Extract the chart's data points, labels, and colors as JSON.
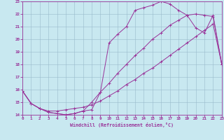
{
  "xlabel": "Windchill (Refroidissement éolien,°C)",
  "bg_color": "#c8e8f0",
  "line_color": "#993399",
  "grid_color": "#99bbcc",
  "xlim": [
    0,
    23
  ],
  "ylim": [
    14,
    23
  ],
  "xticks": [
    0,
    1,
    2,
    3,
    4,
    5,
    6,
    7,
    8,
    9,
    10,
    11,
    12,
    13,
    14,
    15,
    16,
    17,
    18,
    19,
    20,
    21,
    22,
    23
  ],
  "yticks": [
    14,
    15,
    16,
    17,
    18,
    19,
    20,
    21,
    22,
    23
  ],
  "curve1_x": [
    0,
    1,
    2,
    3,
    4,
    5,
    6,
    7,
    8,
    9,
    10,
    11,
    12,
    13,
    14,
    15,
    16,
    17,
    18,
    19,
    20,
    21,
    22,
    23
  ],
  "curve1_y": [
    15.9,
    14.9,
    14.5,
    14.2,
    14.1,
    14.0,
    14.1,
    14.3,
    14.4,
    15.8,
    19.7,
    20.4,
    21.0,
    22.3,
    22.5,
    22.7,
    23.0,
    22.8,
    22.3,
    21.9,
    20.9,
    20.5,
    21.9,
    18.0
  ],
  "curve2_x": [
    0,
    1,
    2,
    3,
    4,
    5,
    6,
    7,
    8,
    9,
    10,
    11,
    12,
    13,
    14,
    15,
    16,
    17,
    18,
    19,
    20,
    21,
    22,
    23
  ],
  "curve2_y": [
    15.9,
    14.9,
    14.5,
    14.2,
    14.1,
    14.0,
    14.1,
    14.3,
    15.0,
    15.8,
    16.5,
    17.3,
    18.0,
    18.7,
    19.3,
    20.0,
    20.5,
    21.1,
    21.5,
    21.9,
    22.0,
    21.9,
    21.8,
    18.0
  ],
  "curve3_x": [
    0,
    1,
    2,
    3,
    4,
    5,
    6,
    7,
    8,
    9,
    10,
    11,
    12,
    13,
    14,
    15,
    16,
    17,
    18,
    19,
    20,
    21,
    22,
    23
  ],
  "curve3_y": [
    15.9,
    14.9,
    14.5,
    14.3,
    14.3,
    14.4,
    14.5,
    14.6,
    14.8,
    15.1,
    15.5,
    15.9,
    16.4,
    16.8,
    17.3,
    17.7,
    18.2,
    18.7,
    19.2,
    19.7,
    20.2,
    20.7,
    21.2,
    18.0
  ]
}
